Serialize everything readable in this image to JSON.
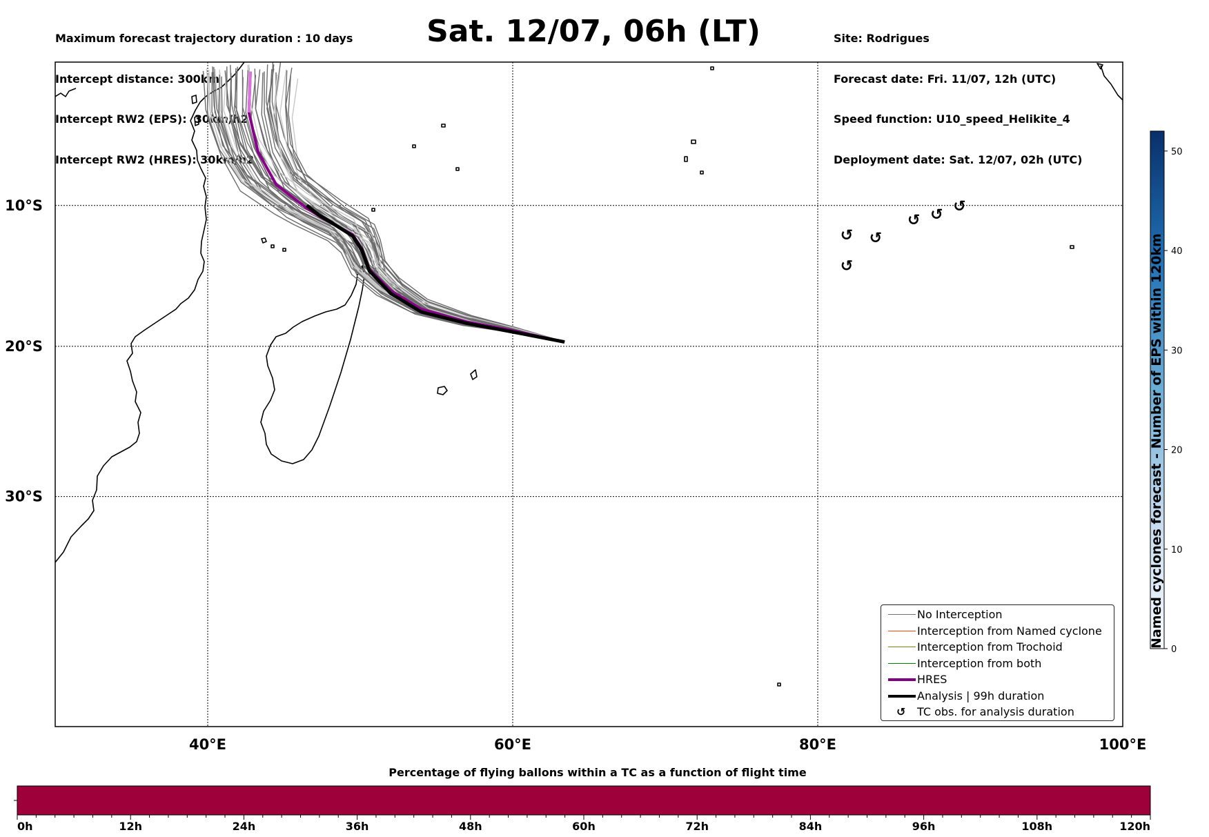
{
  "header": {
    "title": "Sat. 12/07, 06h (LT)",
    "left_lines": [
      "Maximum forecast trajectory duration : 10 days",
      "Intercept distance: 300km",
      "Intercept RW2 (EPS):  30km/h2",
      "Intercept RW2 (HRES): 30km/h2"
    ],
    "right_lines": [
      "Site: Rodrigues",
      "Forecast date: Fri. 11/07, 12h (UTC)",
      "Speed function: U10_speed_Helikite_4",
      "Deployment date: Sat. 12/07, 02h (UTC)"
    ]
  },
  "map": {
    "lon_range": [
      30,
      100
    ],
    "lat_range": [
      -43.5,
      0.5
    ],
    "lat_labels": [
      {
        "lat": -10,
        "text": "10°S"
      },
      {
        "lat": -20,
        "text": "20°S"
      },
      {
        "lat": -30,
        "text": "30°S"
      }
    ],
    "lon_labels": [
      {
        "lon": 40,
        "text": "40°E"
      },
      {
        "lon": 60,
        "text": "60°E"
      },
      {
        "lon": 80,
        "text": "80°E"
      },
      {
        "lon": 100,
        "text": "100°E"
      }
    ],
    "launch_site": {
      "name": "Rodrigues",
      "lon": 63.4,
      "lat": -19.7
    },
    "hres_track": [
      [
        63.4,
        -19.7
      ],
      [
        60,
        -18.9
      ],
      [
        57,
        -18.3
      ],
      [
        54,
        -17.4
      ],
      [
        52,
        -16.1
      ],
      [
        50.6,
        -14.6
      ],
      [
        50.1,
        -13.1
      ],
      [
        49.5,
        -12.1
      ],
      [
        47.5,
        -10.9
      ],
      [
        46.5,
        -10.2
      ],
      [
        44.5,
        -8.5
      ],
      [
        43.3,
        -6.1
      ],
      [
        42.7,
        -3.2
      ],
      [
        42.8,
        -0.2
      ]
    ],
    "analysis_track": [
      [
        63.4,
        -19.7
      ],
      [
        60,
        -19.0
      ],
      [
        57,
        -18.4
      ],
      [
        54,
        -17.6
      ],
      [
        52,
        -16.3
      ],
      [
        50.6,
        -14.7
      ],
      [
        50.1,
        -13.2
      ],
      [
        49.5,
        -12.2
      ],
      [
        48.2,
        -11.3
      ],
      [
        47.3,
        -10.7
      ],
      [
        46.5,
        -10.0
      ]
    ],
    "tc_obs": [
      {
        "lon": 81.9,
        "lat": -12.1
      },
      {
        "lon": 83.8,
        "lat": -12.3
      },
      {
        "lon": 81.9,
        "lat": -14.3
      },
      {
        "lon": 86.3,
        "lat": -11.0
      },
      {
        "lon": 87.8,
        "lat": -10.6
      },
      {
        "lon": 89.3,
        "lat": -10.0
      }
    ]
  },
  "legend": {
    "items": [
      {
        "label": "No Interception",
        "color": "#707070",
        "style": "thin"
      },
      {
        "label": "Interception from Named cyclone",
        "color": "#ff4500",
        "style": "thin"
      },
      {
        "label": "Interception from Trochoid",
        "color": "#808000",
        "style": "thin"
      },
      {
        "label": "Interception from both",
        "color": "#008000",
        "style": "thin"
      },
      {
        "label": "HRES",
        "color": "#800080",
        "style": "thick"
      },
      {
        "label": "Analysis | 99h duration",
        "color": "#000000",
        "style": "thick"
      },
      {
        "label": "TC obs. for analysis duration",
        "color": "#000000",
        "style": "symbol",
        "symbol": "↺"
      }
    ]
  },
  "colorbar": {
    "title": "Named cyclones forecast - Number of EPS within 120km",
    "range": [
      0,
      52
    ],
    "ticks": [
      0,
      10,
      20,
      30,
      40,
      50
    ],
    "color_low": "#f7fbff",
    "color_high": "#08306b"
  },
  "bottom_bar": {
    "title": "Percentage of flying ballons within a TC as a function of flight time",
    "color": "#9e003a",
    "tick_labels": [
      "0h",
      "12h",
      "24h",
      "36h",
      "48h",
      "60h",
      "72h",
      "84h",
      "96h",
      "108h",
      "120h"
    ]
  }
}
